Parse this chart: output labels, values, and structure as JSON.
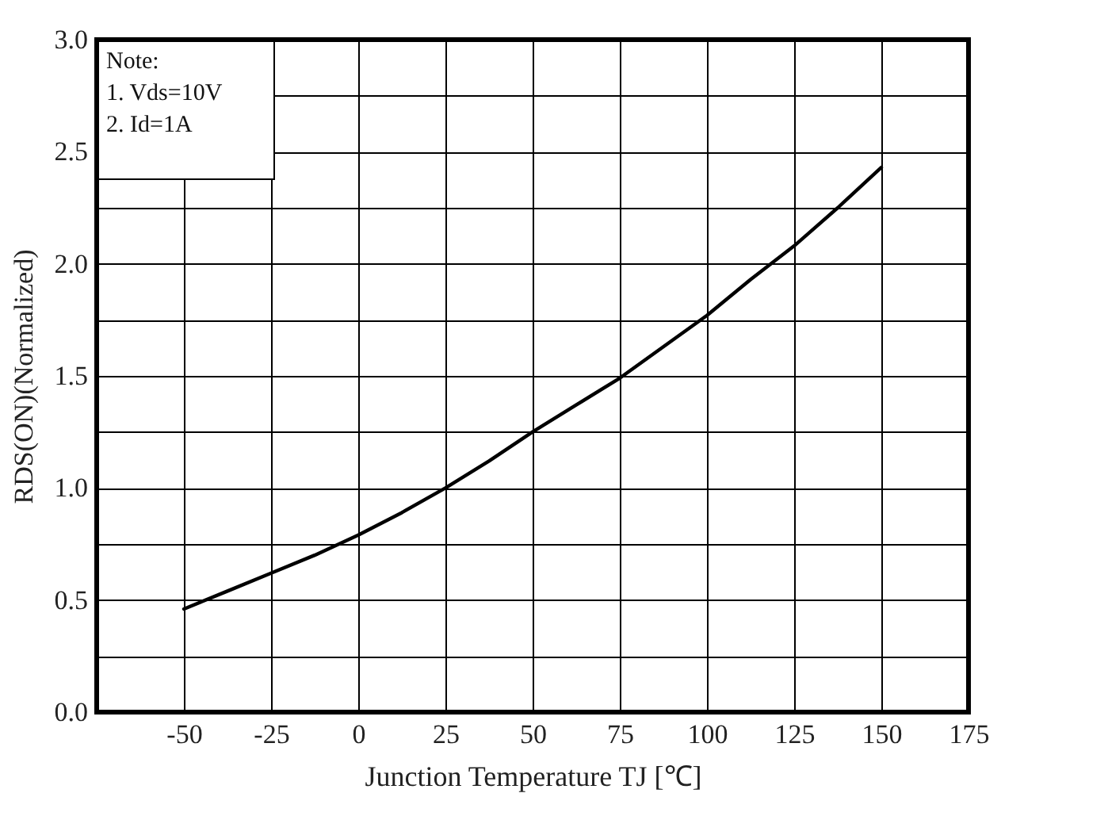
{
  "chart_data": {
    "type": "line",
    "xlabel": "Junction Temperature TJ [℃]",
    "ylabel": "RDS(ON)(Normalized)",
    "annotations": [
      "Note:",
      "1. Vds=10V",
      "2. Id=1A"
    ],
    "x": [
      -50,
      -37.5,
      -25,
      -12.5,
      0,
      12.5,
      25,
      37.5,
      50,
      62.5,
      75,
      87.5,
      100,
      112.5,
      125,
      137.5,
      150
    ],
    "series": [
      {
        "color": "#000000",
        "values": [
          0.46,
          0.54,
          0.62,
          0.7,
          0.79,
          0.89,
          1.0,
          1.12,
          1.25,
          1.37,
          1.49,
          1.63,
          1.77,
          1.93,
          2.08,
          2.25,
          2.43
        ]
      }
    ],
    "xlim": [
      -75,
      175
    ],
    "xticks": [
      {
        "value": -75,
        "label": null
      },
      -50,
      -25,
      0,
      25,
      50,
      75,
      100,
      125,
      150,
      175
    ],
    "ylim": [
      0,
      3
    ],
    "yticks": [
      {
        "value": 0,
        "label": "0.0"
      },
      {
        "value": 0.25,
        "label": null
      },
      0.5,
      {
        "value": 0.75,
        "label": null
      },
      {
        "value": 1,
        "label": "1.0"
      },
      {
        "value": 1.25,
        "label": null
      },
      1.5,
      {
        "value": 1.75,
        "label": null
      },
      {
        "value": 2,
        "label": "2.0"
      },
      {
        "value": 2.25,
        "label": null
      },
      2.5,
      {
        "value": 2.75,
        "label": null
      },
      {
        "value": 3,
        "label": "3.0"
      }
    ],
    "grid": true,
    "legend": false,
    "marker": "none",
    "line_style": "solid"
  }
}
